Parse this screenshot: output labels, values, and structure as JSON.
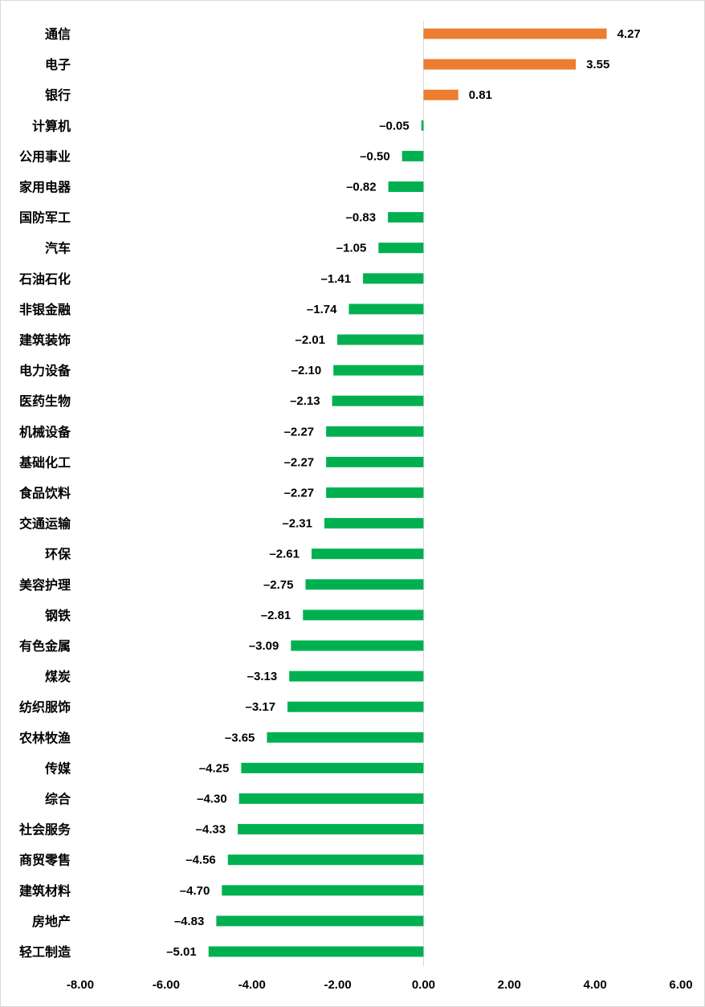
{
  "chart_data": {
    "type": "bar",
    "orientation": "horizontal",
    "title": "",
    "xlabel": "",
    "ylabel": "",
    "xlim": [
      -8,
      6
    ],
    "xticks": [
      "-8.00",
      "-6.00",
      "-4.00",
      "-2.00",
      "0.00",
      "2.00",
      "4.00",
      "6.00"
    ],
    "grid": false,
    "legend": "none",
    "colors": {
      "positive": "#ED7D31",
      "negative": "#00B050",
      "axis": "#d9d9d9"
    },
    "categories": [
      "通信",
      "电子",
      "银行",
      "计算机",
      "公用事业",
      "家用电器",
      "国防军工",
      "汽车",
      "石油石化",
      "非银金融",
      "建筑装饰",
      "电力设备",
      "医药生物",
      "机械设备",
      "基础化工",
      "食品饮料",
      "交通运输",
      "环保",
      "美容护理",
      "钢铁",
      "有色金属",
      "煤炭",
      "纺织服饰",
      "农林牧渔",
      "传媒",
      "综合",
      "社会服务",
      "商贸零售",
      "建筑材料",
      "房地产",
      "轻工制造"
    ],
    "values": [
      4.27,
      3.55,
      0.81,
      -0.05,
      -0.5,
      -0.82,
      -0.83,
      -1.05,
      -1.41,
      -1.74,
      -2.01,
      -2.1,
      -2.13,
      -2.27,
      -2.27,
      -2.27,
      -2.31,
      -2.61,
      -2.75,
      -2.81,
      -3.09,
      -3.13,
      -3.17,
      -3.65,
      -4.25,
      -4.3,
      -4.33,
      -4.56,
      -4.7,
      -4.83,
      -5.01
    ],
    "value_labels": [
      "4.27",
      "3.55",
      "0.81",
      "–0.05",
      "–0.50",
      "–0.82",
      "–0.83",
      "–1.05",
      "–1.41",
      "–1.74",
      "–2.01",
      "–2.10",
      "–2.13",
      "–2.27",
      "–2.27",
      "–2.27",
      "–2.31",
      "–2.61",
      "–2.75",
      "–2.81",
      "–3.09",
      "–3.13",
      "–3.17",
      "–3.65",
      "–4.25",
      "–4.30",
      "–4.33",
      "–4.56",
      "–4.70",
      "–4.83",
      "–5.01"
    ]
  }
}
